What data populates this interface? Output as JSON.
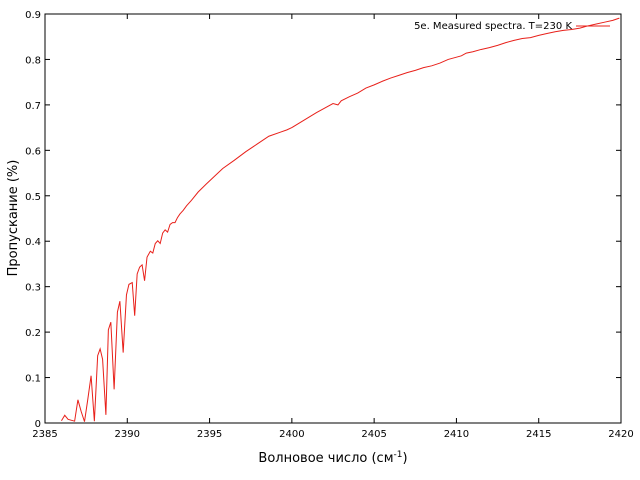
{
  "chart_data": {
    "type": "line",
    "xlabel": "Волновое число (см",
    "xlabel_sup": "-1",
    "xlabel_end": ")",
    "ylabel": "Пропускание (%)",
    "xlim": [
      2385,
      2420
    ],
    "ylim": [
      0,
      0.9
    ],
    "xticks": [
      2385,
      2390,
      2395,
      2400,
      2405,
      2410,
      2415,
      2420
    ],
    "yticks": [
      0,
      0.1,
      0.2,
      0.3,
      0.4,
      0.5,
      0.6,
      0.7,
      0.8,
      0.9
    ],
    "grid": false,
    "legend_position": "top-right",
    "series": [
      {
        "name": "5e. Measured spectra. T=230 K",
        "color": "#e8201a",
        "x": [
          2386.0,
          2386.2,
          2386.4,
          2386.8,
          2387.0,
          2387.2,
          2387.4,
          2387.6,
          2387.8,
          2388.0,
          2388.2,
          2388.35,
          2388.5,
          2388.7,
          2388.85,
          2389.0,
          2389.2,
          2389.4,
          2389.55,
          2389.75,
          2389.95,
          2390.1,
          2390.3,
          2390.45,
          2390.6,
          2390.75,
          2390.9,
          2391.05,
          2391.2,
          2391.4,
          2391.55,
          2391.7,
          2391.85,
          2392.0,
          2392.15,
          2392.3,
          2392.45,
          2392.6,
          2392.75,
          2392.9,
          2393.05,
          2393.2,
          2393.4,
          2393.6,
          2393.9,
          2394.3,
          2394.8,
          2395.3,
          2395.8,
          2396.5,
          2397.2,
          2397.9,
          2398.6,
          2399.3,
          2399.7,
          2400.0,
          2400.5,
          2401.0,
          2401.5,
          2402.0,
          2402.5,
          2402.8,
          2403.0,
          2403.5,
          2404.0,
          2404.5,
          2405.0,
          2405.5,
          2406.0,
          2406.5,
          2407.0,
          2407.5,
          2408.0,
          2408.5,
          2409.0,
          2409.5,
          2410.0,
          2410.3,
          2410.6,
          2411.0,
          2411.5,
          2412.0,
          2412.5,
          2413.0,
          2413.5,
          2414.0,
          2414.5,
          2415.0,
          2415.5,
          2416.0,
          2416.5,
          2417.0,
          2417.5,
          2418.0,
          2418.5,
          2419.0,
          2419.5,
          2419.9
        ],
        "y": [
          0.005,
          0.017,
          0.008,
          0.004,
          0.051,
          0.025,
          0.003,
          0.052,
          0.104,
          0.004,
          0.148,
          0.163,
          0.14,
          0.018,
          0.205,
          0.222,
          0.074,
          0.244,
          0.268,
          0.155,
          0.282,
          0.305,
          0.309,
          0.236,
          0.328,
          0.343,
          0.348,
          0.313,
          0.365,
          0.378,
          0.374,
          0.395,
          0.401,
          0.395,
          0.418,
          0.425,
          0.42,
          0.437,
          0.441,
          0.441,
          0.452,
          0.46,
          0.468,
          0.478,
          0.49,
          0.508,
          0.526,
          0.543,
          0.56,
          0.578,
          0.597,
          0.614,
          0.631,
          0.64,
          0.645,
          0.65,
          0.661,
          0.672,
          0.683,
          0.693,
          0.703,
          0.7,
          0.709,
          0.718,
          0.726,
          0.737,
          0.744,
          0.752,
          0.759,
          0.765,
          0.771,
          0.776,
          0.782,
          0.786,
          0.792,
          0.8,
          0.805,
          0.808,
          0.814,
          0.817,
          0.822,
          0.826,
          0.831,
          0.837,
          0.842,
          0.846,
          0.848,
          0.853,
          0.857,
          0.861,
          0.864,
          0.866,
          0.869,
          0.874,
          0.878,
          0.882,
          0.886,
          0.891
        ]
      }
    ]
  }
}
